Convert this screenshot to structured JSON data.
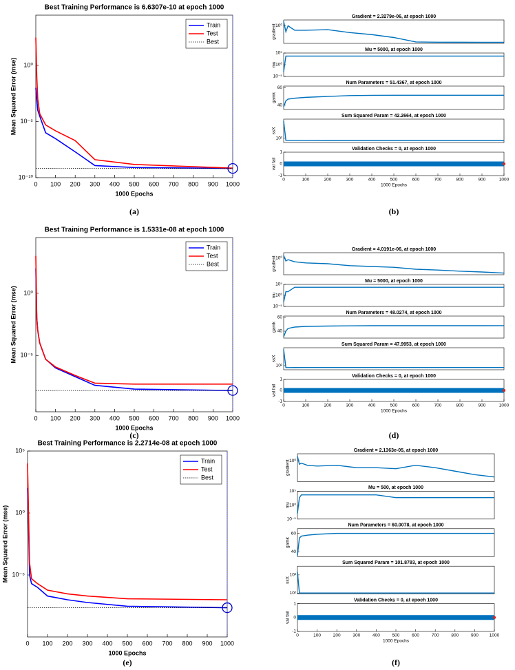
{
  "chart_data": [
    {
      "type": "line",
      "caption": "(a)",
      "title": "Best Training Performance is 6.6307e-10 at epoch 1000",
      "x_label": "1000 Epochs",
      "y_label": "Mean Squared Error  (mse)",
      "log_y": true,
      "xlim": [
        0,
        1000
      ],
      "xticks": [
        0,
        100,
        200,
        300,
        400,
        500,
        600,
        700,
        800,
        900,
        1000
      ],
      "ylim": [
        1e-10,
        30000
      ],
      "yticks": [
        {
          "value": 1e-10,
          "label": "10⁻¹⁰"
        },
        {
          "value": 1e-05,
          "label": "10⁻⁵"
        },
        {
          "value": 1,
          "label": "10⁰"
        }
      ],
      "x": [
        0,
        5,
        10,
        20,
        50,
        100,
        200,
        300,
        500,
        1000
      ],
      "series": [
        {
          "name": "Train",
          "color": "#0000ff",
          "values": [
            0.01,
            0.001,
            0.0001,
            3e-05,
            1e-06,
            3e-07,
            2e-08,
            1.2e-09,
            8e-10,
            6.6307e-10
          ]
        },
        {
          "name": "Test",
          "color": "#ff0000",
          "values": [
            300,
            0.1,
            0.001,
            5e-05,
            5e-06,
            1.5e-06,
            2e-07,
            4e-09,
            1.5e-09,
            7e-10
          ]
        },
        {
          "name": "Best",
          "color": "#000000",
          "values": [
            6.6307e-10,
            6.6307e-10,
            6.6307e-10,
            6.6307e-10,
            6.6307e-10,
            6.6307e-10,
            6.6307e-10,
            6.6307e-10,
            6.6307e-10,
            6.6307e-10
          ]
        }
      ]
    },
    {
      "type": "training-state",
      "caption": "(b)",
      "x_label": "1000 Epochs",
      "xlim": [
        0,
        1000
      ],
      "xticks": [
        0,
        100,
        200,
        300,
        400,
        500,
        600,
        700,
        800,
        900,
        1000
      ],
      "x": [
        0,
        10,
        20,
        50,
        100,
        200,
        300,
        400,
        500,
        600,
        700,
        800,
        900,
        1000
      ],
      "subplots": [
        {
          "title": "Gradient = 2.3279e-06, at epoch 1000",
          "y_label": "gradient",
          "log_y": true,
          "ylim": [
            1e-06,
            100
          ],
          "yticks": [
            {
              "value": 1,
              "label": "10⁰"
            }
          ],
          "color": "#0072bd",
          "values": [
            30,
            0.01,
            1,
            0.03,
            0.03,
            0.05,
            0.005,
            0.001,
            0.0001,
            3e-06,
            2.5e-06,
            2.4e-06,
            2.35e-06,
            2.3279e-06
          ]
        },
        {
          "title": "Mu = 5000, at epoch 1000",
          "y_label": "mu",
          "log_y": true,
          "ylim": [
            1e-05,
            100000
          ],
          "yticks": [
            {
              "value": 1e-05,
              "label": "10⁻⁵"
            },
            {
              "value": 1,
              "label": "10⁰"
            },
            {
              "value": 100000,
              "label": "10⁵"
            }
          ],
          "color": "#0072bd",
          "values": [
            0.001,
            5000,
            5000,
            5000,
            5000,
            5000,
            5000,
            5000,
            5000,
            5000,
            5000,
            5000,
            5000,
            5000
          ]
        },
        {
          "title": "Num Parameters = 51.4367, at epoch 1000",
          "y_label": "gamk",
          "log_y": false,
          "ylim": [
            35,
            62
          ],
          "yticks": [
            40,
            60
          ],
          "color": "#0072bd",
          "values": [
            38,
            45,
            47,
            48,
            49,
            50,
            51,
            51.3,
            51.4,
            51.4,
            51.4,
            51.4,
            51.4,
            51.4367
          ]
        },
        {
          "title": "Sum Squared Param = 42.2664, at epoch 1000",
          "y_label": "ssX",
          "log_y": true,
          "ylim": [
            20,
            100000
          ],
          "yticks": [
            {
              "value": 100,
              "label": "10²"
            }
          ],
          "color": "#0072bd",
          "values": [
            50000,
            45,
            44,
            43,
            43,
            42.5,
            42.3,
            42.3,
            42.3,
            42.3,
            42.3,
            42.3,
            42.3,
            42.2664
          ]
        },
        {
          "title": "Validation Checks = 0, at epoch 1000",
          "y_label": "val fail",
          "log_y": false,
          "ylim": [
            -1,
            1
          ],
          "yticks": [
            -1,
            0,
            1
          ],
          "color": "#0072bd",
          "values": [
            0,
            0,
            0,
            0,
            0,
            0,
            0,
            0,
            0,
            0,
            0,
            0,
            0,
            0
          ]
        }
      ]
    },
    {
      "type": "line",
      "caption": "(c)",
      "title": "Best Training Performance is 1.5331e-08 at epoch 1000",
      "x_label": "1000 Epochs",
      "y_label": "Mean Squared Error  (mse)",
      "log_y": true,
      "xlim": [
        0,
        1000
      ],
      "xticks": [
        0,
        100,
        200,
        300,
        400,
        500,
        600,
        700,
        800,
        900,
        1000
      ],
      "ylim": [
        3e-10,
        30000
      ],
      "yticks": [
        {
          "value": 1e-05,
          "label": "10⁻⁵"
        },
        {
          "value": 1,
          "label": "10⁰"
        }
      ],
      "x": [
        0,
        5,
        10,
        20,
        50,
        100,
        200,
        300,
        500,
        1000
      ],
      "series": [
        {
          "name": "Train",
          "color": "#0000ff",
          "values": [
            100,
            0.01,
            0.001,
            0.0001,
            5e-06,
            1e-06,
            2e-07,
            4e-08,
            2e-08,
            1.5331e-08
          ]
        },
        {
          "name": "Test",
          "color": "#ff0000",
          "values": [
            1000,
            0.01,
            0.001,
            0.0001,
            5e-06,
            1.2e-06,
            2.5e-07,
            6e-08,
            5e-08,
            5e-08
          ]
        },
        {
          "name": "Best",
          "color": "#000000",
          "values": [
            1.5331e-08,
            1.5331e-08,
            1.5331e-08,
            1.5331e-08,
            1.5331e-08,
            1.5331e-08,
            1.5331e-08,
            1.5331e-08,
            1.5331e-08,
            1.5331e-08
          ]
        }
      ]
    },
    {
      "type": "training-state",
      "caption": "(d)",
      "x_label": "1000 Epochs",
      "xlim": [
        0,
        1000
      ],
      "xticks": [
        0,
        100,
        200,
        300,
        400,
        500,
        600,
        700,
        800,
        900,
        1000
      ],
      "x": [
        0,
        10,
        20,
        50,
        100,
        200,
        300,
        400,
        500,
        600,
        700,
        800,
        900,
        1000
      ],
      "subplots": [
        {
          "title": "Gradient = 4.0191e-06, at epoch 1000",
          "y_label": "gradient",
          "log_y": true,
          "ylim": [
            1e-06,
            100
          ],
          "yticks": [
            {
              "value": 1,
              "label": "10⁰"
            }
          ],
          "color": "#0072bd",
          "values": [
            10,
            0.1,
            0.3,
            0.05,
            0.02,
            0.01,
            0.002,
            0.001,
            0.0005,
            0.0001,
            5e-05,
            2e-05,
            1e-05,
            4.0191e-06
          ]
        },
        {
          "title": "Mu = 5000, at epoch 1000",
          "y_label": "mu",
          "log_y": true,
          "ylim": [
            1e-05,
            100000
          ],
          "yticks": [
            {
              "value": 1e-05,
              "label": "10⁻⁵"
            },
            {
              "value": 1,
              "label": "10⁰"
            },
            {
              "value": 100000,
              "label": "10⁵"
            }
          ],
          "color": "#0072bd",
          "values": [
            0.001,
            50,
            50,
            5000,
            5000,
            5000,
            5000,
            5000,
            5000,
            5000,
            5000,
            5000,
            5000,
            5000
          ]
        },
        {
          "title": "Num Parameters = 48.0274, at epoch 1000",
          "y_label": "gamk",
          "log_y": false,
          "ylim": [
            30,
            62
          ],
          "yticks": [
            40,
            60
          ],
          "color": "#0072bd",
          "values": [
            32,
            40,
            44,
            46,
            47,
            47.5,
            47.8,
            48,
            48,
            48,
            48,
            48,
            48,
            48.0274
          ]
        },
        {
          "title": "Sum Squared Param = 47.9953, at epoch 1000",
          "y_label": "ssX",
          "log_y": true,
          "ylim": [
            20,
            100000
          ],
          "yticks": [
            {
              "value": 100,
              "label": "10²"
            }
          ],
          "color": "#0072bd",
          "values": [
            50000,
            47,
            47,
            47.5,
            47.8,
            48,
            48,
            48,
            48,
            48,
            48,
            48,
            48,
            47.9953
          ]
        },
        {
          "title": "Validation Checks = 0, at epoch 1000",
          "y_label": "val fail",
          "log_y": false,
          "ylim": [
            -1,
            1
          ],
          "yticks": [
            -1,
            0,
            1
          ],
          "color": "#0072bd",
          "values": [
            0,
            0,
            0,
            0,
            0,
            0,
            0,
            0,
            0,
            0,
            0,
            0,
            0,
            0
          ]
        }
      ]
    },
    {
      "type": "line",
      "caption": "(e)",
      "title": "Best Training Performance is 2.2714e-08 at epoch 1000",
      "x_label": "1000 Epochs",
      "y_label": "Mean Squared Error  (mse)",
      "log_y": true,
      "xlim": [
        0,
        1000
      ],
      "xticks": [
        0,
        100,
        200,
        300,
        400,
        500,
        600,
        700,
        800,
        900,
        1000
      ],
      "ylim": [
        1e-10,
        100000
      ],
      "yticks": [
        {
          "value": 1e-05,
          "label": "10⁻⁵"
        },
        {
          "value": 1,
          "label": "10⁰"
        },
        {
          "value": 100000,
          "label": "10⁵"
        }
      ],
      "x": [
        0,
        5,
        10,
        20,
        50,
        100,
        200,
        300,
        500,
        1000
      ],
      "series": [
        {
          "name": "Train",
          "color": "#0000ff",
          "values": [
            100,
            0.1,
            1e-05,
            2e-06,
            1e-06,
            2e-07,
            1e-07,
            6e-08,
            3e-08,
            2.2714e-08
          ]
        },
        {
          "name": "Test",
          "color": "#ff0000",
          "values": [
            10000,
            1,
            0.0001,
            5e-06,
            2e-06,
            6e-07,
            3e-07,
            2e-07,
            1.2e-07,
            1e-07
          ]
        },
        {
          "name": "Best",
          "color": "#000000",
          "values": [
            2.2714e-08,
            2.2714e-08,
            2.2714e-08,
            2.2714e-08,
            2.2714e-08,
            2.2714e-08,
            2.2714e-08,
            2.2714e-08,
            2.2714e-08,
            2.2714e-08
          ]
        }
      ]
    },
    {
      "type": "training-state",
      "caption": "(f)",
      "x_label": "1000 Epochs",
      "xlim": [
        0,
        1000
      ],
      "xticks": [
        0,
        100,
        200,
        300,
        400,
        500,
        600,
        700,
        800,
        900,
        1000
      ],
      "x": [
        0,
        10,
        20,
        50,
        100,
        200,
        300,
        400,
        500,
        600,
        700,
        800,
        900,
        1000
      ],
      "subplots": [
        {
          "title": "Gradient = 2.1363e-05, at epoch 1000",
          "y_label": "gradient",
          "log_y": true,
          "ylim": [
            1e-06,
            100
          ],
          "yticks": [
            {
              "value": 1,
              "label": "10⁰"
            }
          ],
          "color": "#0072bd",
          "values": [
            20,
            0.1,
            0.2,
            0.05,
            0.03,
            0.05,
            0.01,
            0.01,
            0.005,
            0.05,
            0.01,
            0.001,
            0.0001,
            2.1363e-05
          ]
        },
        {
          "title": "Mu = 500, at epoch 1000",
          "y_label": "mu",
          "log_y": true,
          "ylim": [
            1e-05,
            100000
          ],
          "yticks": [
            {
              "value": 1e-05,
              "label": "10⁻⁵"
            },
            {
              "value": 1,
              "label": "10⁰"
            },
            {
              "value": 100000,
              "label": "10⁵"
            }
          ],
          "color": "#0072bd",
          "values": [
            0.001,
            500,
            5000,
            5000,
            5000,
            5000,
            5000,
            5000,
            500,
            500,
            500,
            500,
            500,
            500
          ]
        },
        {
          "title": "Num Parameters = 60.0078, at epoch 1000",
          "y_label": "gamk",
          "log_y": false,
          "ylim": [
            35,
            65
          ],
          "yticks": [
            40,
            60
          ],
          "color": "#0072bd",
          "values": [
            36,
            55,
            57,
            58,
            59,
            60,
            60,
            60,
            60,
            60,
            60,
            60,
            60,
            60.0078
          ]
        },
        {
          "title": "Sum Squared Param = 101.8783, at epoch 1000",
          "y_label": "ssX",
          "log_y": true,
          "ylim": [
            90,
            3000
          ],
          "yticks": [
            {
              "value": 100,
              "label": "10²"
            },
            {
              "value": 1000,
              "label": "10³"
            }
          ],
          "color": "#0072bd",
          "values": [
            1500,
            102,
            102,
            102,
            102,
            102,
            102,
            102,
            102,
            102,
            102,
            102,
            102,
            101.8783
          ]
        },
        {
          "title": "Validation Checks = 0, at epoch 1000",
          "y_label": "val fail",
          "log_y": false,
          "ylim": [
            -1,
            1
          ],
          "yticks": [
            -1,
            0,
            1
          ],
          "color": "#0072bd",
          "values": [
            0,
            0,
            0,
            0,
            0,
            0,
            0,
            0,
            0,
            0,
            0,
            0,
            0,
            0
          ]
        }
      ]
    }
  ]
}
